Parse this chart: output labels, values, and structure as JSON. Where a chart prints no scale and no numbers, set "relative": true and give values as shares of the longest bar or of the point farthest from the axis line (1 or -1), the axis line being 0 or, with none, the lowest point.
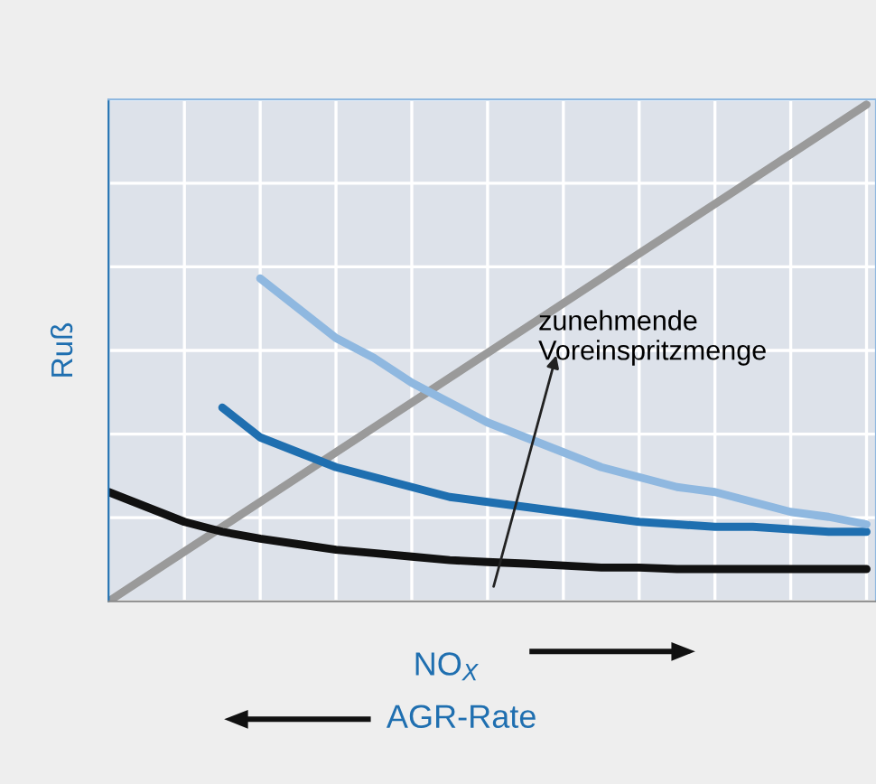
{
  "chart_data": {
    "type": "line",
    "relative": true,
    "grid": true,
    "legend": false,
    "xlabel": "NO$_{X}$",
    "ylabel": "Ruß",
    "annotations": [
      "zunehmende\nVoreinspritzmenge",
      "AGR-Rate"
    ],
    "categories": [
      null,
      null,
      null,
      null,
      null,
      null,
      null,
      null,
      null,
      null,
      null,
      null,
      null,
      null,
      null,
      null,
      null,
      null,
      null,
      null,
      null
    ],
    "series": [
      {
        "color": "#9a9a9a",
        "values": [
          0,
          0.05,
          0.1,
          0.15,
          0.2,
          0.25,
          0.3,
          0.35,
          0.4,
          0.45,
          0.5,
          0.55,
          0.6,
          0.65,
          0.7,
          0.75,
          0.8,
          0.85,
          0.9,
          0.95,
          1.0
        ]
      },
      {
        "color": "#111111",
        "values": [
          0.22,
          0.19,
          0.16,
          0.14,
          0.126,
          0.115,
          0.104,
          0.097,
          0.09,
          0.083,
          0.079,
          0.076,
          0.072,
          0.068,
          0.068,
          0.065,
          0.065,
          0.065,
          0.065,
          0.065,
          0.065
        ]
      },
      {
        "color": "#1f6fb0",
        "values": [
          null,
          null,
          null,
          0.39,
          0.33,
          0.3,
          0.27,
          0.25,
          0.23,
          0.21,
          0.2,
          0.19,
          0.18,
          0.17,
          0.16,
          0.155,
          0.15,
          0.15,
          0.145,
          0.14,
          0.14
        ]
      },
      {
        "color": "#8fb8e0",
        "values": [
          null,
          null,
          null,
          null,
          0.65,
          0.59,
          0.53,
          0.49,
          0.44,
          0.4,
          0.36,
          0.33,
          0.3,
          0.27,
          0.25,
          0.23,
          0.22,
          0.2,
          0.18,
          0.17,
          0.155
        ]
      }
    ]
  }
}
